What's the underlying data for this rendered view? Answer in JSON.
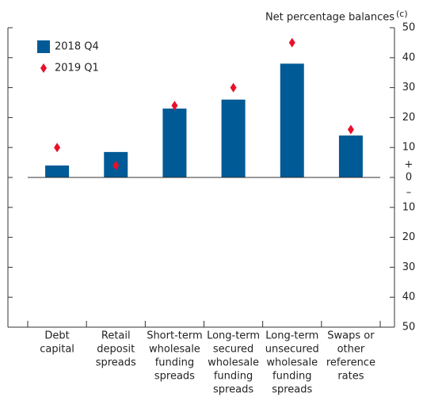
{
  "chart_data": {
    "type": "bar",
    "y_label": "Net percentage balances",
    "y_label_note": "(c)",
    "sign_labels": [
      "+",
      "–"
    ],
    "categories": [
      [
        "Debt",
        "capital"
      ],
      [
        "Retail",
        "deposit",
        "spreads"
      ],
      [
        "Short-term",
        "wholesale",
        "funding",
        "spreads"
      ],
      [
        "Long-term",
        "secured",
        "wholesale",
        "funding",
        "spreads"
      ],
      [
        "Long-term",
        "unsecured",
        "wholesale",
        "funding",
        "spreads"
      ],
      [
        "Swaps or",
        "other",
        "reference",
        "rates"
      ]
    ],
    "series": [
      {
        "name": "2018 Q4",
        "color": "#005a96",
        "marker": "bar",
        "values": [
          4,
          8.5,
          23,
          26,
          38,
          14
        ]
      },
      {
        "name": "2019 Q1",
        "color": "#e8102a",
        "marker": "diamond",
        "values": [
          10,
          4,
          24,
          30,
          45,
          16
        ]
      }
    ],
    "ylim": [
      -50,
      50
    ],
    "yticks": [
      {
        "value": -50,
        "label": "50"
      },
      {
        "value": -40,
        "label": "40"
      },
      {
        "value": -30,
        "label": "30"
      },
      {
        "value": -20,
        "label": "20"
      },
      {
        "value": -10,
        "label": "10"
      },
      0,
      10,
      20,
      30,
      40,
      50
    ]
  }
}
